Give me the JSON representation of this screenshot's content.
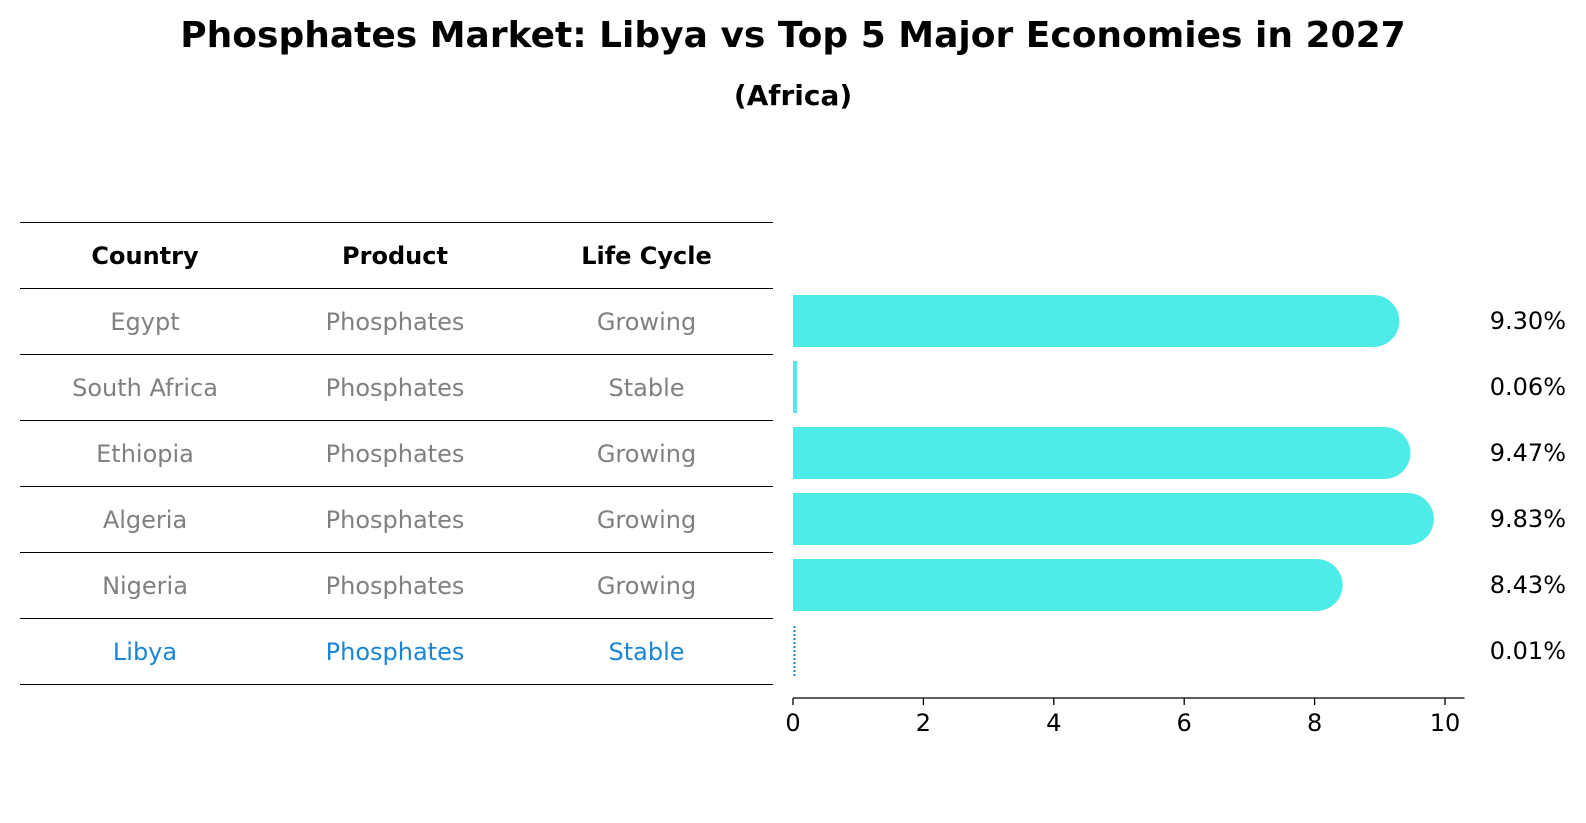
{
  "title": "Phosphates Market: Libya vs Top 5 Major Economies in 2027",
  "subtitle": "(Africa)",
  "table": {
    "headers": [
      "Country",
      "Product",
      "Life Cycle"
    ],
    "rows": [
      {
        "country": "Egypt",
        "product": "Phosphates",
        "life_cycle": "Growing"
      },
      {
        "country": "South Africa",
        "product": "Phosphates",
        "life_cycle": "Stable"
      },
      {
        "country": "Ethiopia",
        "product": "Phosphates",
        "life_cycle": "Growing"
      },
      {
        "country": "Algeria",
        "product": "Phosphates",
        "life_cycle": "Growing"
      },
      {
        "country": "Nigeria",
        "product": "Phosphates",
        "life_cycle": "Growing"
      },
      {
        "country": "Libya",
        "product": "Phosphates",
        "life_cycle": "Stable"
      }
    ]
  },
  "colors": {
    "bar": "#4eece9",
    "highlight": "#1a85d6",
    "muted_text": "#808080"
  },
  "chart_data": {
    "type": "bar",
    "orientation": "horizontal",
    "categories": [
      "Egypt",
      "South Africa",
      "Ethiopia",
      "Algeria",
      "Nigeria",
      "Libya"
    ],
    "values": [
      9.3,
      0.06,
      9.47,
      9.83,
      8.43,
      0.01
    ],
    "value_labels": [
      "9.30%",
      "0.06%",
      "9.47%",
      "9.83%",
      "8.43%",
      "0.01%"
    ],
    "highlight_category": "Libya",
    "xlim": [
      0,
      10.3
    ],
    "xticks": [
      0,
      2,
      4,
      6,
      8,
      10
    ],
    "xtick_labels": [
      "0",
      "2",
      "4",
      "6",
      "8",
      "10"
    ],
    "grid": false
  }
}
